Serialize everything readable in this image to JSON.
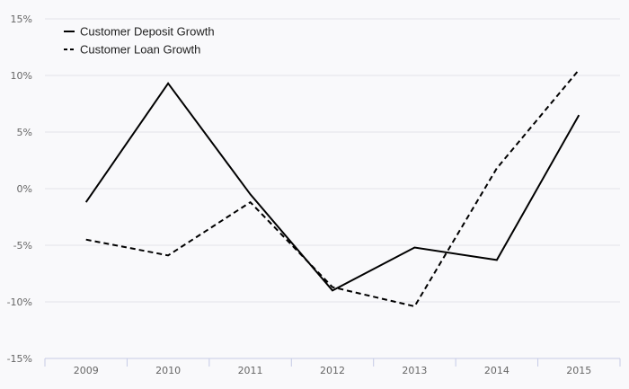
{
  "chart_data": {
    "type": "line",
    "title": "",
    "xlabel": "",
    "ylabel": "",
    "categories": [
      "2009",
      "2010",
      "2011",
      "2012",
      "2013",
      "2014",
      "2015"
    ],
    "ylim": [
      -15,
      15
    ],
    "yticks": [
      -15,
      -10,
      -5,
      0,
      5,
      10,
      15
    ],
    "ytick_labels": [
      "-15%",
      "-10%",
      "-5%",
      "0%",
      "5%",
      "10%",
      "15%"
    ],
    "grid": true,
    "legend_position": "top-left",
    "series": [
      {
        "name": "Customer Deposit Growth",
        "style": "solid",
        "color": "#000000",
        "values": [
          -1.2,
          9.3,
          -0.5,
          -9.0,
          -5.2,
          -6.3,
          6.5
        ]
      },
      {
        "name": "Customer Loan Growth",
        "style": "dashed",
        "color": "#000000",
        "values": [
          -4.5,
          -5.9,
          -1.2,
          -8.7,
          -10.4,
          1.8,
          10.5
        ]
      }
    ]
  }
}
